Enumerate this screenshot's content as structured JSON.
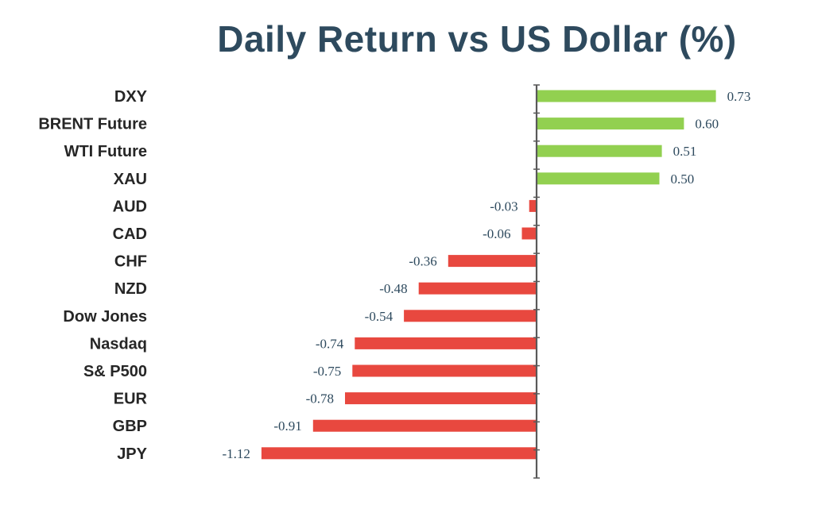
{
  "chart_data": {
    "type": "bar",
    "orientation": "horizontal",
    "title": "Daily Return vs US Dollar (%)",
    "categories": [
      "DXY",
      "BRENT Future",
      "WTI Future",
      "XAU",
      "AUD",
      "CAD",
      "CHF",
      "NZD",
      "Dow Jones",
      "Nasdaq",
      "S& P500",
      "EUR",
      "GBP",
      "JPY"
    ],
    "values": [
      0.73,
      0.6,
      0.51,
      0.5,
      -0.03,
      -0.06,
      -0.36,
      -0.48,
      -0.54,
      -0.74,
      -0.75,
      -0.78,
      -0.91,
      -1.12
    ],
    "data_labels": [
      "0.73",
      "0.60",
      "0.51",
      "0.50",
      "-0.03",
      "-0.06",
      "-0.36",
      "-0.48",
      "-0.54",
      "-0.74",
      "-0.75",
      "-0.78",
      "-0.91",
      "-1.12"
    ],
    "colors": {
      "positive": "#92d050",
      "negative": "#e8483f",
      "title": "#2e4a5e",
      "category_label": "#262626",
      "value_label": "#2e4a5e",
      "axis": "#595959"
    },
    "xlabel": "",
    "ylabel": "",
    "grid": false,
    "legend": "none"
  }
}
